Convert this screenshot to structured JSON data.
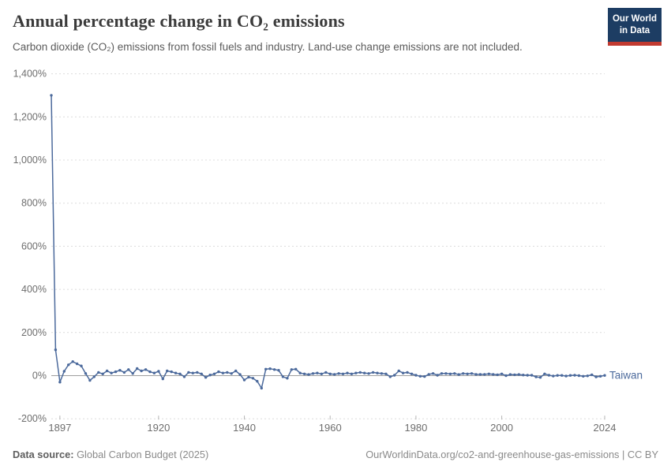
{
  "header": {
    "title": "Annual percentage change in CO₂ emissions",
    "subtitle": "Carbon dioxide (CO₂) emissions from fossil fuels and industry. Land-use change emissions are not included.",
    "logo": {
      "line1": "Our World",
      "line2": "in Data",
      "bg_color": "#1d3d63",
      "accent_color": "#c13a30"
    }
  },
  "chart_data": {
    "type": "line",
    "title": "Annual percentage change in CO₂ emissions",
    "xlabel": "",
    "ylabel": "",
    "xlim": [
      1895,
      2024
    ],
    "ylim": [
      -200,
      1400
    ],
    "grid": "horizontal dashed, solid zero line",
    "legend_position": "line-end label",
    "y_ticks": [
      {
        "v": -200,
        "label": "-200%"
      },
      {
        "v": 0,
        "label": "0%"
      },
      {
        "v": 200,
        "label": "200%"
      },
      {
        "v": 400,
        "label": "400%"
      },
      {
        "v": 600,
        "label": "600%"
      },
      {
        "v": 800,
        "label": "800%"
      },
      {
        "v": 1000,
        "label": "1,000%"
      },
      {
        "v": 1200,
        "label": "1,200%"
      },
      {
        "v": 1400,
        "label": "1,400%"
      }
    ],
    "x_ticks": [
      {
        "year": 1897,
        "label": "1897"
      },
      {
        "year": 1920,
        "label": "1920"
      },
      {
        "year": 1940,
        "label": "1940"
      },
      {
        "year": 1960,
        "label": "1960"
      },
      {
        "year": 1980,
        "label": "1980"
      },
      {
        "year": 2000,
        "label": "2000"
      },
      {
        "year": 2024,
        "label": "2024"
      }
    ],
    "series": [
      {
        "name": "Taiwan",
        "color": "#4c6a9c",
        "start_year": 1895,
        "values": [
          1300,
          120,
          -30,
          20,
          50,
          65,
          55,
          45,
          10,
          -22,
          -5,
          15,
          8,
          22,
          12,
          18,
          25,
          15,
          28,
          10,
          33,
          22,
          28,
          18,
          12,
          20,
          -15,
          22,
          18,
          12,
          8,
          -5,
          15,
          12,
          15,
          8,
          -8,
          3,
          8,
          18,
          12,
          15,
          10,
          22,
          5,
          -20,
          -7,
          -12,
          -26,
          -58,
          30,
          32,
          28,
          25,
          -5,
          -12,
          28,
          30,
          12,
          8,
          5,
          10,
          12,
          8,
          15,
          8,
          6,
          10,
          8,
          12,
          8,
          12,
          15,
          12,
          10,
          15,
          12,
          10,
          8,
          -5,
          2,
          22,
          12,
          15,
          8,
          2,
          -3,
          -4,
          6,
          10,
          2,
          10,
          10,
          8,
          10,
          5,
          10,
          8,
          10,
          6,
          6,
          6,
          8,
          6,
          4,
          8,
          0,
          5,
          4,
          5,
          3,
          2,
          2,
          -6,
          -8,
          8,
          2,
          -2,
          1,
          1,
          -2,
          1,
          2,
          0,
          -3,
          -1,
          4,
          -6,
          -3,
          1
        ]
      }
    ],
    "style": {
      "line_color": "#4c6a9c",
      "grid_color": "#dcdcdc",
      "zero_line_color": "#9e9e9e",
      "tick_text_color": "#6e6e6e",
      "axis_tick_color": "#b5b5b5"
    }
  },
  "footer": {
    "source_label": "Data source:",
    "source_text": " Global Carbon Budget (2025)",
    "link_text": "OurWorldinData.org/co2-and-greenhouse-gas-emissions | CC BY"
  }
}
